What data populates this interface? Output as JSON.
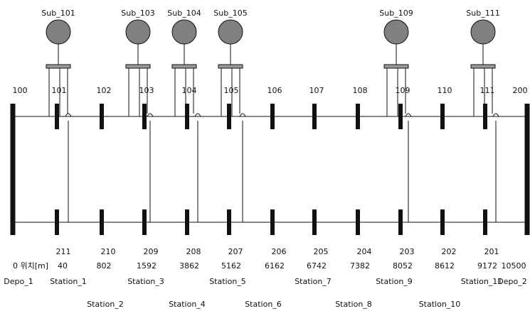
{
  "substations": [
    {
      "label": "Sub_101",
      "top_node": "101"
    },
    {
      "label": "Sub_103",
      "top_node": "103"
    },
    {
      "label": "Sub_104",
      "top_node": "104"
    },
    {
      "label": "Sub_105",
      "top_node": "105"
    },
    {
      "label": "Sub_109",
      "top_node": "109"
    },
    {
      "label": "Sub_111",
      "top_node": "111"
    }
  ],
  "top_nodes": [
    "100",
    "101",
    "102",
    "103",
    "104",
    "105",
    "106",
    "107",
    "108",
    "109",
    "110",
    "111",
    "200"
  ],
  "bottom_nodes": [
    "211",
    "210",
    "209",
    "208",
    "207",
    "206",
    "205",
    "204",
    "203",
    "202",
    "201"
  ],
  "position_label": "0 위치[m]",
  "positions": [
    "40",
    "802",
    "1592",
    "3862",
    "5162",
    "6162",
    "6742",
    "7382",
    "8052",
    "8612",
    "9172",
    "10500"
  ],
  "stations_row1": [
    "Depo_1",
    "Station_1",
    "Station_3",
    "Station_5",
    "Station_7",
    "Station_9",
    "Station_11",
    "Depo_2"
  ],
  "stations_row2": [
    "Station_2",
    "Station_4",
    "Station_6",
    "Station_8",
    "Station_10"
  ],
  "colors": {
    "line": "#111111",
    "circle_fill": "#808080",
    "bar_fill": "#9a9a9a"
  }
}
